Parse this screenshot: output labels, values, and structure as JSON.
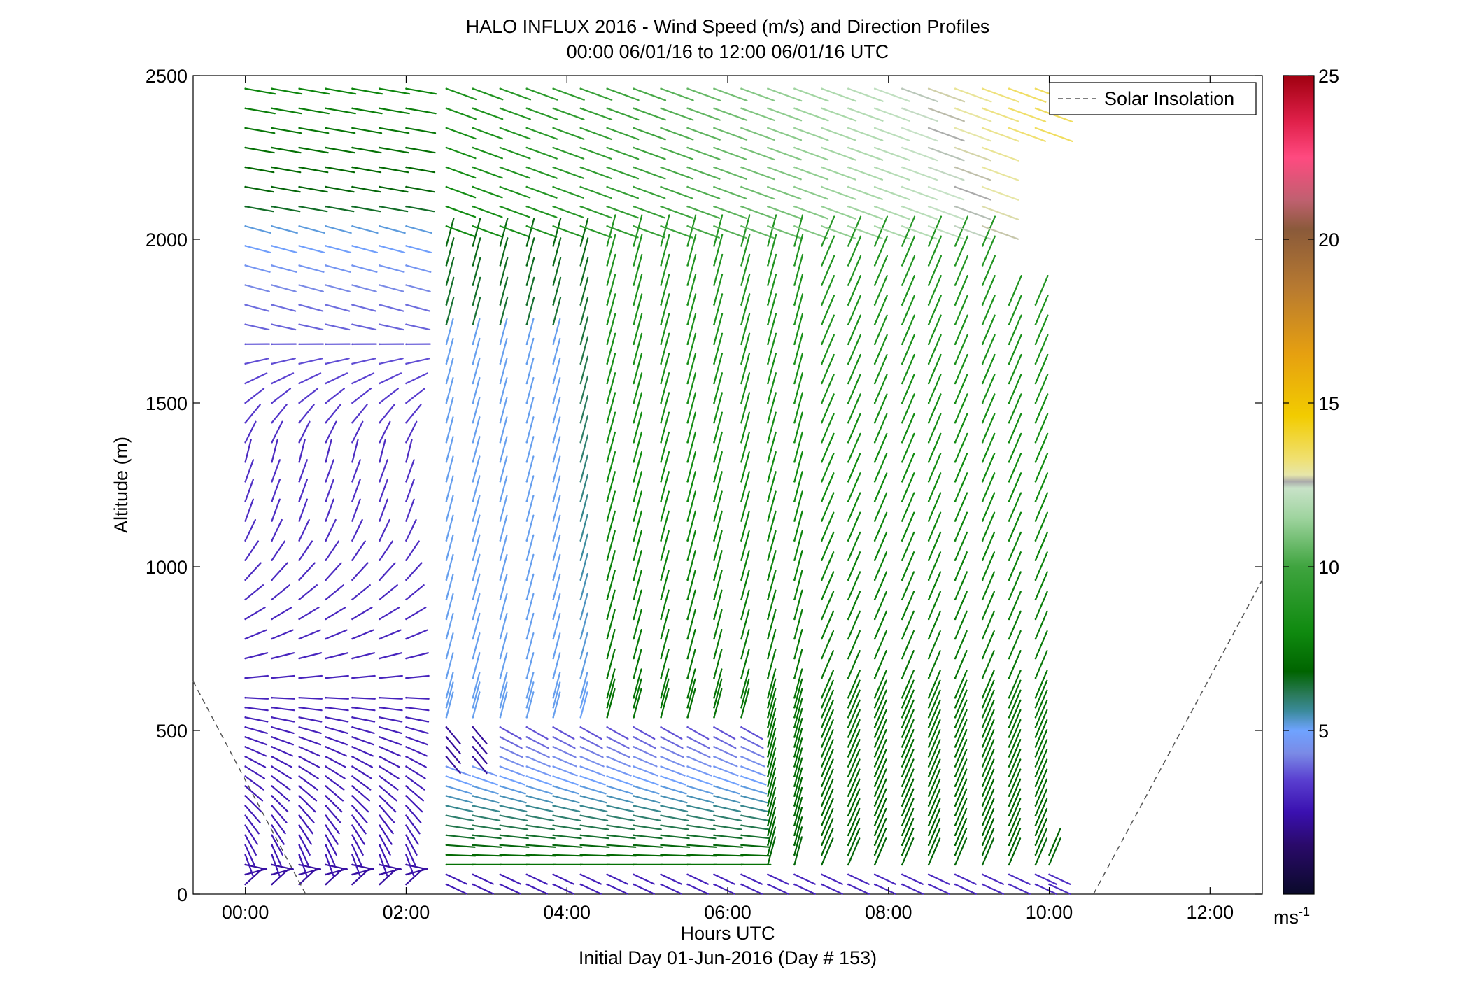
{
  "chart_data": {
    "type": "wind-barb-profile",
    "title": "HALO INFLUX 2016 - Wind Speed (m/s) and Direction Profiles",
    "subtitle": "00:00 06/01/16 to 12:00 06/01/16  UTC",
    "xlabel": "Hours UTC",
    "xlabel2": "Initial Day 01-Jun-2016 (Day # 153)",
    "ylabel": "Altitude (m)",
    "xlim": [
      -0.65,
      12.65
    ],
    "ylim": [
      0,
      2500
    ],
    "x_ticks": [
      0,
      2,
      4,
      6,
      8,
      10,
      12
    ],
    "x_tick_labels": [
      "00:00",
      "02:00",
      "04:00",
      "06:00",
      "08:00",
      "10:00",
      "12:00"
    ],
    "y_ticks": [
      0,
      500,
      1000,
      1500,
      2000,
      2500
    ],
    "y_tick_labels": [
      "0",
      "500",
      "1000",
      "1500",
      "2000",
      "2500"
    ],
    "legend": {
      "label": "Solar Insolation",
      "placement": "top-right",
      "style": "dashed",
      "color": "#555555"
    },
    "colorbar": {
      "label_base": "ms",
      "label_exp": "-1",
      "min": 0,
      "max": 25,
      "ticks": [
        5,
        10,
        15,
        20,
        25
      ],
      "tick_labels": [
        "5",
        "10",
        "15",
        "20",
        "25"
      ],
      "stops": [
        [
          0,
          "#0a0a2a"
        ],
        [
          1.5,
          "#2a0a6a"
        ],
        [
          2.5,
          "#3a10b0"
        ],
        [
          3.5,
          "#5a40d0"
        ],
        [
          4.3,
          "#7a8ae6"
        ],
        [
          5,
          "#6fa3ff"
        ],
        [
          5.6,
          "#3a8a9a"
        ],
        [
          6.1,
          "#2a7a5a"
        ],
        [
          6.8,
          "#006400"
        ],
        [
          8,
          "#0f8a0f"
        ],
        [
          10,
          "#3fa43f"
        ],
        [
          11.5,
          "#9fd49f"
        ],
        [
          12.4,
          "#c8e2c8"
        ],
        [
          12.6,
          "#aaaaaa"
        ],
        [
          12.8,
          "#e6e6aa"
        ],
        [
          13.3,
          "#f0e070"
        ],
        [
          14.6,
          "#f2cc00"
        ],
        [
          16.5,
          "#e6a010"
        ],
        [
          18.5,
          "#b87a30"
        ],
        [
          20.3,
          "#8a5a3a"
        ],
        [
          21.2,
          "#c06070"
        ],
        [
          22.5,
          "#ff4a80"
        ],
        [
          23.6,
          "#e0204a"
        ],
        [
          25,
          "#a00010"
        ]
      ]
    },
    "solar_insolation": [
      {
        "x": [
          -0.65,
          0.75
        ],
        "y": [
          650,
          0
        ]
      },
      {
        "x": [
          10.55,
          12.65
        ],
        "y": [
          0,
          960
        ]
      }
    ],
    "profile_times_hours": [
      0.0,
      0.33,
      0.67,
      1.0,
      1.33,
      1.67,
      2.0,
      2.5,
      2.83,
      3.17,
      3.5,
      3.83,
      4.17,
      4.5,
      4.83,
      5.17,
      5.5,
      5.83,
      6.17,
      6.5,
      6.83,
      7.17,
      7.5,
      7.83,
      8.17,
      8.5,
      8.83,
      9.17,
      9.5,
      9.83,
      10.0
    ],
    "profile_altitudes_m": [
      30,
      60,
      90,
      120,
      150,
      180,
      210,
      240,
      270,
      300,
      330,
      360,
      390,
      420,
      450,
      480,
      510,
      540,
      570,
      600,
      660,
      720,
      780,
      840,
      900,
      960,
      1020,
      1080,
      1140,
      1200,
      1260,
      1320,
      1380,
      1440,
      1500,
      1560,
      1620,
      1680,
      1740,
      1800,
      1860,
      1920,
      1980,
      2040,
      2100,
      2160,
      2220,
      2280,
      2340,
      2400,
      2460
    ],
    "wind_summary": [
      {
        "time_range": "00:00-02:00",
        "altitude_range": "0-1500 m",
        "speed_ms": "2-4",
        "direction": "southerly to northwesterly, veering"
      },
      {
        "time_range": "00:00-02:00",
        "altitude_range": "1500-2500 m",
        "speed_ms": "3-8",
        "direction": "westerly / west-northwesterly"
      },
      {
        "time_range": "02:30-06:00",
        "altitude_range": "100-500 m",
        "speed_ms": "4-8",
        "direction": "westerly"
      },
      {
        "time_range": "02:30-10:00",
        "altitude_range": "500-2000 m",
        "speed_ms": "5-10",
        "direction": "south to south-southwesterly"
      },
      {
        "time_range": "04:00-09:30",
        "altitude_range": "2000-2500 m",
        "speed_ms": "9-14",
        "direction": "west-northwesterly"
      },
      {
        "time_range": "06:00-10:00",
        "altitude_range": "0-100 m",
        "speed_ms": "2-4",
        "direction": "northwesterly"
      }
    ]
  }
}
